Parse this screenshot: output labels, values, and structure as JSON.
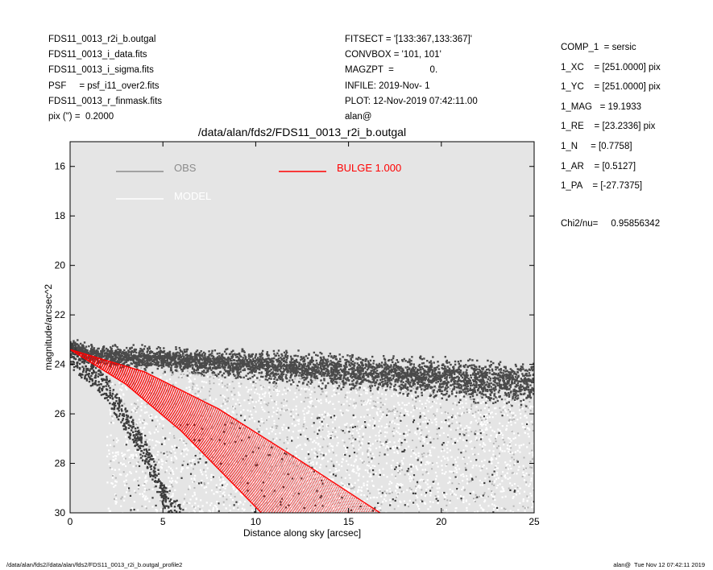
{
  "header_left": [
    "FDS11_0013_r2i_b.outgal",
    "FDS11_0013_i_data.fits",
    "FDS11_0013_i_sigma.fits",
    "PSF     = psf_i11_over2.fits",
    "FDS11_0013_r_finmask.fits",
    "pix (\") =  0.2000"
  ],
  "header_mid": [
    "FITSECT = '[133:367,133:367]'",
    "CONVBOX = '101, 101'",
    "MAGZPT  =              0.",
    "INFILE: 2019-Nov- 1",
    "PLOT: 12-Nov-2019 07:42:11.00",
    "alan@"
  ],
  "header_right": [
    "COMP_1  = sersic",
    "1_XC    = [251.0000] pix",
    "1_YC    = [251.0000] pix",
    "1_MAG   = 19.1933",
    "1_RE    = [23.2336] pix",
    "1_N     = [0.7758]",
    "1_AR    = [0.5127]",
    "1_PA    = [-27.7375]"
  ],
  "chi2": "Chi2/nu=     0.95856342",
  "footer_left": "/data/alan/fds2//data/alan/fds2/FDS11_0013_r2i_b.outgal_profile2",
  "footer_right": "alan@  Tue Nov 12 07:42:11 2019",
  "chart_data": {
    "type": "scatter",
    "title": "/data/alan/fds2/FDS11_0013_r2i_b.outgal",
    "xlabel": "Distance along sky [arcsec]",
    "ylabel": "magnitude/arcsec^2",
    "xlim": [
      0,
      25
    ],
    "ylim": [
      30,
      15
    ],
    "x_ticks": [
      0,
      5,
      10,
      15,
      20,
      25
    ],
    "y_ticks": [
      16,
      18,
      20,
      22,
      24,
      26,
      28,
      30
    ],
    "background": "#e5e5e5",
    "legend": [
      {
        "label": "OBS",
        "color": "#8c8c8c"
      },
      {
        "label": "MODEL",
        "color": "#ffffff"
      },
      {
        "label": "BULGE  1.000",
        "color": "#ff0000"
      }
    ],
    "series": [
      {
        "name": "OBS",
        "color": "#4a4a4a",
        "band_center": [
          [
            0,
            23.3
          ],
          [
            1,
            23.6
          ],
          [
            25,
            24.8
          ]
        ],
        "band_halfwidth": [
          0.25,
          0.6
        ]
      },
      {
        "name": "OBS",
        "color": "#3c3c3c",
        "wing_inner": [
          [
            0,
            23.6
          ],
          [
            2,
            25.0
          ],
          [
            4,
            27.5
          ],
          [
            5.5,
            30
          ]
        ]
      },
      {
        "name": "MODEL",
        "color": "#ffffff",
        "scatter_region": [
          [
            3,
            25
          ],
          [
            25,
            30
          ]
        ]
      },
      {
        "name": "BULGE  1.000",
        "color": "#ff0000",
        "inner_edge": [
          [
            0,
            23.4
          ],
          [
            3,
            24.8
          ],
          [
            6,
            26.7
          ],
          [
            9,
            29.0
          ],
          [
            10.3,
            30
          ]
        ],
        "outer_edge": [
          [
            0,
            23.4
          ],
          [
            4,
            24.3
          ],
          [
            8,
            25.8
          ],
          [
            12,
            27.7
          ],
          [
            16.7,
            30
          ]
        ]
      }
    ]
  }
}
